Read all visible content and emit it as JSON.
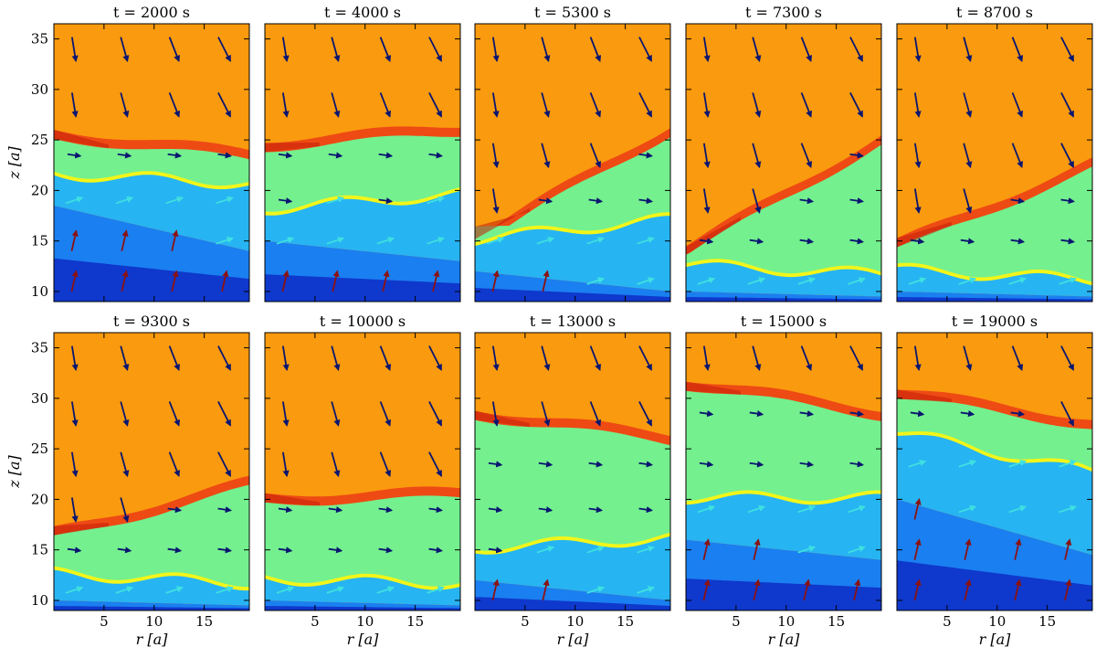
{
  "figure": {
    "rows": 2,
    "cols": 5,
    "colors": {
      "ambient": "#fa9a0e",
      "shell": "#ee4a14",
      "shell_dark": "#c41d0a",
      "mixing": "#74f08e",
      "mixing_yellow": "#f2f51a",
      "wind_light": "#27b4f2",
      "wind": "#1a7ff0",
      "wind_deep": "#0f38cc",
      "arrow_navy": "#0a1670",
      "arrow_red": "#8b1212",
      "arrow_cyan": "#3fe0e0",
      "arrow_orange": "#f0901a"
    }
  },
  "chart_data": {
    "type": "heatmap",
    "description_units": "simulation snapshots, spatial axes in units of a",
    "xlabel": "r [a]",
    "ylabel": "z [a]",
    "xlim": [
      0,
      19.5
    ],
    "ylim": [
      9,
      36.5
    ],
    "xticks": [
      5,
      10,
      15
    ],
    "yticks": [
      10,
      15,
      20,
      25,
      30,
      35
    ],
    "panels": [
      {
        "title": "t = 2000 s",
        "time": 2000,
        "shell_top": [
          26,
          24
        ],
        "interface": [
          21.5,
          20.5
        ],
        "core": [
          18.5,
          14
        ]
      },
      {
        "title": "t = 4000 s",
        "time": 4000,
        "shell_top": [
          25,
          26.5
        ],
        "interface": [
          18,
          19.5
        ],
        "core": [
          15,
          13
        ]
      },
      {
        "title": "t = 5300 s",
        "time": 5300,
        "shell_top": [
          15.5,
          26.5
        ],
        "interface": [
          15,
          17
        ],
        "core": [
          12,
          10
        ]
      },
      {
        "title": "t = 7300 s",
        "time": 7300,
        "shell_top": [
          14.5,
          25.5
        ],
        "interface": [
          12.5,
          11.5
        ],
        "core": [
          10,
          9.5
        ]
      },
      {
        "title": "t = 8700 s",
        "time": 8700,
        "shell_top": [
          15,
          23
        ],
        "interface": [
          12,
          11
        ],
        "core": [
          10,
          9.5
        ]
      },
      {
        "title": "t = 9300 s",
        "time": 9300,
        "shell_top": [
          17,
          22
        ],
        "interface": [
          12.5,
          11.5
        ],
        "core": [
          10,
          9.5
        ]
      },
      {
        "title": "t = 10000 s",
        "time": 10000,
        "shell_top": [
          20.5,
          21
        ],
        "interface": [
          12,
          11.5
        ],
        "core": [
          10,
          9.5
        ]
      },
      {
        "title": "t = 13000 s",
        "time": 13000,
        "shell_top": [
          29,
          26.5
        ],
        "interface": [
          15,
          16
        ],
        "core": [
          12,
          10
        ]
      },
      {
        "title": "t = 15000 s",
        "time": 15000,
        "shell_top": [
          32,
          29
        ],
        "interface": [
          20,
          20
        ],
        "core": [
          16,
          14
        ]
      },
      {
        "title": "t = 19000 s",
        "time": 19000,
        "shell_top": [
          31,
          28
        ],
        "interface": [
          26.5,
          22.5
        ],
        "core": [
          20,
          14.5
        ]
      }
    ]
  }
}
